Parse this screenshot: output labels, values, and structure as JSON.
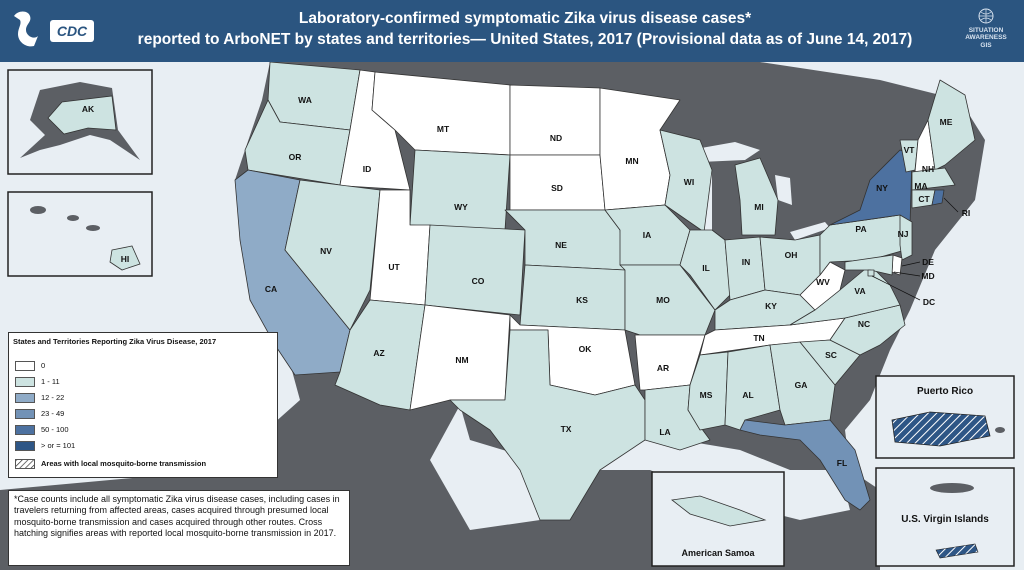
{
  "header": {
    "title_line1": "Laboratory-confirmed symptomatic Zika virus disease cases*",
    "title_line2": "reported to ArboNET by states and territories— United States, 2017 (Provisional data as of June 14, 2017)",
    "logo_text": "CDC",
    "gis_line1": "SITUATION",
    "gis_line2": "AWARENESS",
    "gis_line3": "GIS"
  },
  "colors": {
    "zero": "#ffffff",
    "c1_11": "#cde3e1",
    "c12_22": "#8fabc7",
    "c23_49": "#7292b6",
    "c50_100": "#4d71a0",
    "c101": "#2e5686",
    "ocean": "#e8eef3",
    "land": "#5c5f64"
  },
  "states": [
    {
      "abbr": "WA"
    },
    {
      "abbr": "OR"
    },
    {
      "abbr": "CA"
    },
    {
      "abbr": "ID"
    },
    {
      "abbr": "NV"
    },
    {
      "abbr": "MT"
    },
    {
      "abbr": "WY"
    },
    {
      "abbr": "UT"
    },
    {
      "abbr": "AZ"
    },
    {
      "abbr": "CO"
    },
    {
      "abbr": "NM"
    },
    {
      "abbr": "ND"
    },
    {
      "abbr": "SD"
    },
    {
      "abbr": "NE"
    },
    {
      "abbr": "KS"
    },
    {
      "abbr": "OK"
    },
    {
      "abbr": "TX"
    },
    {
      "abbr": "MN"
    },
    {
      "abbr": "IA"
    },
    {
      "abbr": "MO"
    },
    {
      "abbr": "AR"
    },
    {
      "abbr": "LA"
    },
    {
      "abbr": "WI"
    },
    {
      "abbr": "IL"
    },
    {
      "abbr": "MI"
    },
    {
      "abbr": "IN"
    },
    {
      "abbr": "OH"
    },
    {
      "abbr": "KY"
    },
    {
      "abbr": "TN"
    },
    {
      "abbr": "MS"
    },
    {
      "abbr": "AL"
    },
    {
      "abbr": "GA"
    },
    {
      "abbr": "FL"
    },
    {
      "abbr": "SC"
    },
    {
      "abbr": "NC"
    },
    {
      "abbr": "VA"
    },
    {
      "abbr": "WV"
    },
    {
      "abbr": "PA"
    },
    {
      "abbr": "NY"
    },
    {
      "abbr": "VT"
    },
    {
      "abbr": "NH"
    },
    {
      "abbr": "ME"
    },
    {
      "abbr": "MA"
    },
    {
      "abbr": "CT"
    },
    {
      "abbr": "RI"
    },
    {
      "abbr": "NJ"
    },
    {
      "abbr": "DE"
    },
    {
      "abbr": "MD"
    },
    {
      "abbr": "DC"
    },
    {
      "abbr": "AK"
    },
    {
      "abbr": "HI"
    }
  ],
  "legend": {
    "title": "States and Territories Reporting Zika Virus Disease, 2017",
    "items": [
      "0",
      "1 - 11",
      "12 - 22",
      "23 - 49",
      "50 - 100",
      "> or = 101",
      "Areas with local mosquito-borne transmission"
    ]
  },
  "insets": {
    "puerto_rico": "Puerto Rico",
    "usvi": "U.S. Virgin Islands",
    "american_samoa": "American Samoa"
  },
  "footnote": "*Case counts include all symptomatic Zika virus disease cases, including cases in travelers returning from affected areas, cases acquired through presumed local mosquito-borne transmission and cases acquired through other routes. Cross hatching signifies areas with reported local mosquito-borne transmission in 2017."
}
